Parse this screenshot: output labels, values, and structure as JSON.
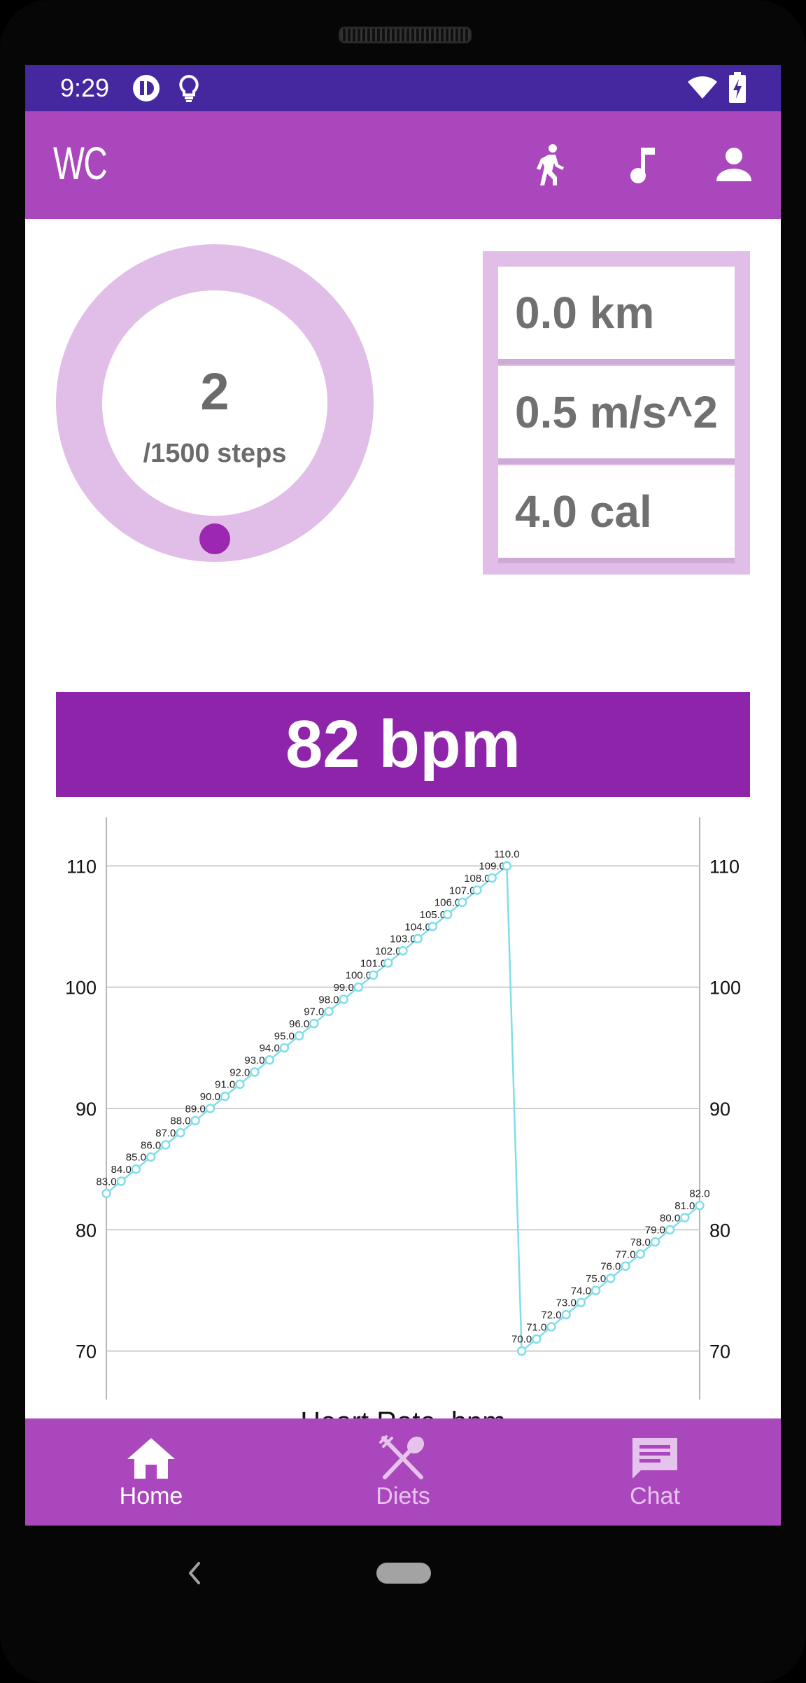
{
  "status_bar": {
    "time": "9:29"
  },
  "app_bar": {
    "logo": "WC",
    "actions": [
      {
        "name": "walk",
        "icon": "walking-person-icon"
      },
      {
        "name": "music",
        "icon": "music-note-icon"
      },
      {
        "name": "profile",
        "icon": "person-icon"
      }
    ]
  },
  "steps": {
    "value": "2",
    "goal_label": "/1500 steps",
    "progress": 0.0013
  },
  "stats": [
    {
      "label": "0.0 km"
    },
    {
      "label": "0.5 m/s^2"
    },
    {
      "label": "4.0 cal"
    }
  ],
  "heart_rate": {
    "display": "82 bpm"
  },
  "chart_data": {
    "type": "line",
    "xlabel": "Heart Rate, bpm",
    "ylim": [
      66,
      114
    ],
    "y_ticks": [
      70,
      80,
      90,
      100,
      110
    ],
    "y_tick_labels": [
      "70",
      "80",
      "90",
      "100",
      "110"
    ],
    "grid": true,
    "series": [
      {
        "color": "#80deea",
        "values": [
          83.0,
          84.0,
          85.0,
          86.0,
          87.0,
          88.0,
          89.0,
          90.0,
          91.0,
          92.0,
          93.0,
          94.0,
          95.0,
          96.0,
          97.0,
          98.0,
          99.0,
          100.0,
          101.0,
          102.0,
          103.0,
          104.0,
          105.0,
          106.0,
          107.0,
          108.0,
          109.0,
          110.0,
          70.0,
          71.0,
          72.0,
          73.0,
          74.0,
          75.0,
          76.0,
          77.0,
          78.0,
          79.0,
          80.0,
          81.0,
          82.0
        ],
        "point_labels": [
          "83.0",
          "84.0",
          "85.0",
          "86.0",
          "87.0",
          "88.0",
          "89.0",
          "90.0",
          "91.0",
          "92.0",
          "93.0",
          "94.0",
          "95.0",
          "96.0",
          "97.0",
          "98.0",
          "99.0",
          "100.0",
          "101.0",
          "102.0",
          "103.0",
          "104.0",
          "105.0",
          "106.0",
          "107.0",
          "108.0",
          "109.0",
          "110.0",
          "70.0",
          "71.0",
          "72.0",
          "73.0",
          "74.0",
          "75.0",
          "76.0",
          "77.0",
          "78.0",
          "79.0",
          "80.0",
          "81.0",
          "82.0"
        ]
      }
    ]
  },
  "bottom_nav": {
    "items": [
      {
        "label": "Home",
        "icon": "home-icon",
        "active": true
      },
      {
        "label": "Diets",
        "icon": "fork-spoon-icon",
        "active": false
      },
      {
        "label": "Chat",
        "icon": "chat-icon",
        "active": false
      }
    ]
  },
  "colors": {
    "status_bar": "#4527a0",
    "app_bar": "#ab47bc",
    "accent": "#8e24aa",
    "ring": "#e1bee7",
    "line": "#80deea"
  }
}
